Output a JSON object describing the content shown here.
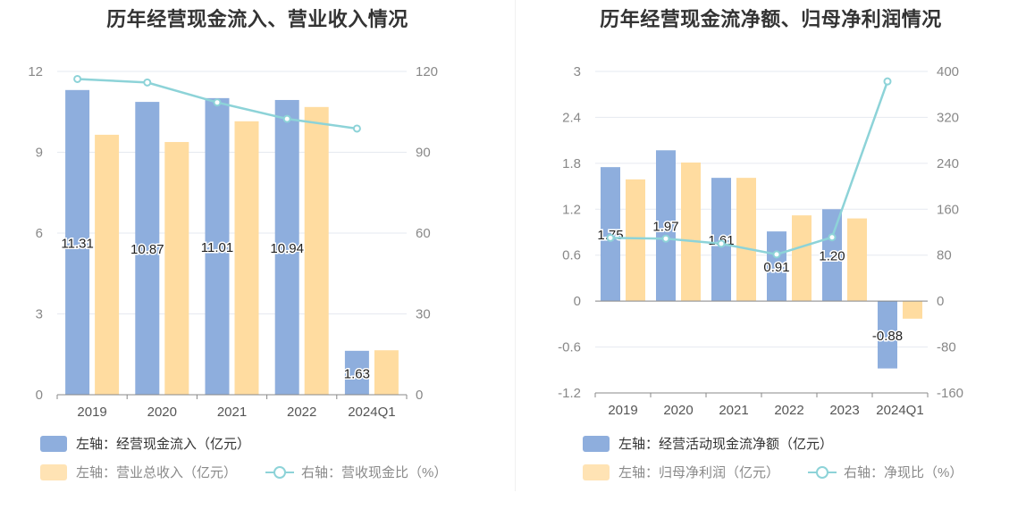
{
  "colors": {
    "bar1": "#8eaedd",
    "bar2": "#ffdca0",
    "line": "#8dd3d8",
    "axis": "#888888",
    "grid": "#e6e9f0"
  },
  "chart_data": [
    {
      "type": "bar",
      "title": "历年经营现金流入、营业收入情况",
      "categories": [
        "2019",
        "2020",
        "2021",
        "2022",
        "2024Q1"
      ],
      "left_axis": {
        "ticks": [
          "0",
          "3",
          "6",
          "9",
          "12"
        ],
        "ylim": [
          0,
          12
        ]
      },
      "right_axis": {
        "ticks": [
          "0",
          "30",
          "60",
          "90",
          "120"
        ],
        "ylim": [
          0,
          120
        ]
      },
      "series": [
        {
          "name": "左轴：经营现金流入（亿元）",
          "axis": "left",
          "kind": "bar",
          "values": [
            11.31,
            10.87,
            11.01,
            10.94,
            1.63
          ],
          "labels": [
            "11.31",
            "10.87",
            "11.01",
            "10.94",
            "1.63"
          ]
        },
        {
          "name": "左轴：营业总收入（亿元）",
          "axis": "left",
          "kind": "bar",
          "values": [
            9.65,
            9.38,
            10.15,
            10.68,
            1.65
          ]
        },
        {
          "name": "右轴：营收现金比（%）",
          "axis": "right",
          "kind": "line",
          "values": [
            117.2,
            115.9,
            108.5,
            102.4,
            98.8
          ]
        }
      ],
      "grid": true,
      "legend": "bottom-left"
    },
    {
      "type": "bar",
      "title": "历年经营现金流净额、归母净利润情况",
      "categories": [
        "2019",
        "2020",
        "2021",
        "2022",
        "2023",
        "2024Q1"
      ],
      "left_axis": {
        "ticks": [
          "-1.2",
          "-0.6",
          "0",
          "0.6",
          "1.2",
          "1.8",
          "2.4",
          "3"
        ],
        "ylim": [
          -1.2,
          3
        ]
      },
      "right_axis": {
        "ticks": [
          "-160",
          "-80",
          "0",
          "80",
          "160",
          "240",
          "320",
          "400"
        ],
        "ylim": [
          -160,
          400
        ]
      },
      "series": [
        {
          "name": "左轴：经营活动现金流净额（亿元）",
          "axis": "left",
          "kind": "bar",
          "values": [
            1.75,
            1.97,
            1.61,
            0.91,
            1.2,
            -0.88
          ],
          "labels": [
            "1.75",
            "1.97",
            "1.61",
            "0.91",
            "1.20",
            "-0.88"
          ]
        },
        {
          "name": "左轴：归母净利润（亿元）",
          "axis": "left",
          "kind": "bar",
          "values": [
            1.59,
            1.81,
            1.61,
            1.12,
            1.08,
            -0.23
          ]
        },
        {
          "name": "右轴：净现比（%）",
          "axis": "right",
          "kind": "line",
          "values": [
            110.1,
            108.8,
            100.0,
            81.3,
            111.1,
            382.6
          ]
        }
      ],
      "grid": true,
      "legend": "bottom-left"
    }
  ]
}
